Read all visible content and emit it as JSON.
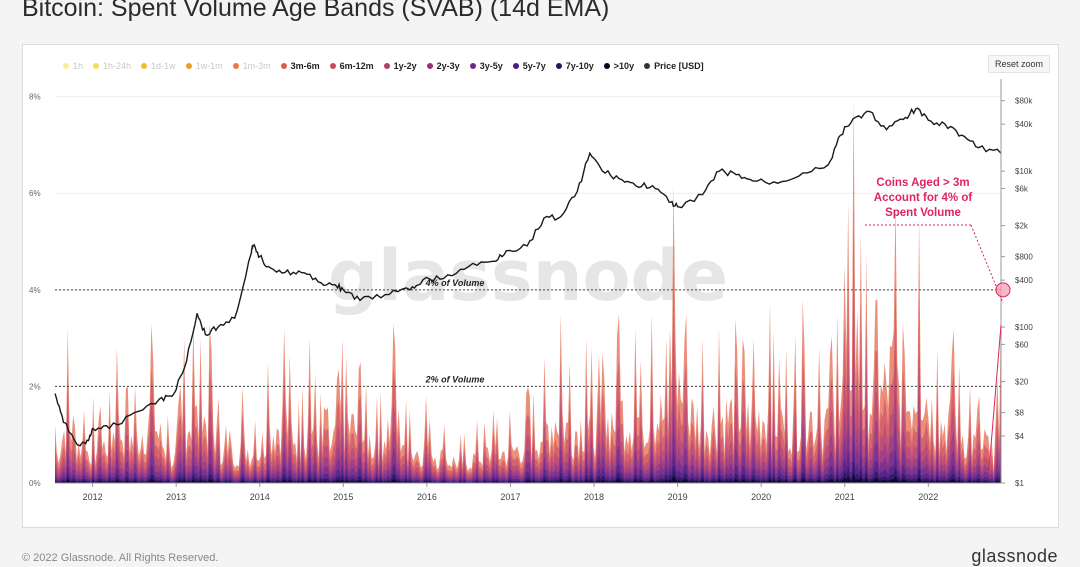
{
  "title": "Bitcoin: Spent Volume Age Bands (SVAB) (14d EMA)",
  "reset_zoom": "Reset zoom",
  "footer_left": "© 2022 Glassnode. All Rights Reserved.",
  "footer_right": "glassnode",
  "watermark": "glassnode",
  "legend": [
    {
      "label": "1h",
      "color": "#f3f09b",
      "active": false
    },
    {
      "label": "1h-24h",
      "color": "#f1df5a",
      "active": false
    },
    {
      "label": "1d-1w",
      "color": "#efbe2c",
      "active": false
    },
    {
      "label": "1w-1m",
      "color": "#ef9b2d",
      "active": false
    },
    {
      "label": "1m-3m",
      "color": "#ea7a3c",
      "active": false
    },
    {
      "label": "3m-6m",
      "color": "#d9614a",
      "active": true
    },
    {
      "label": "6m-12m",
      "color": "#c84a5c",
      "active": true
    },
    {
      "label": "1y-2y",
      "color": "#b23c6d",
      "active": true
    },
    {
      "label": "2y-3y",
      "color": "#95307c",
      "active": true
    },
    {
      "label": "3y-5y",
      "color": "#712687",
      "active": true
    },
    {
      "label": "5y-7y",
      "color": "#4c1c80",
      "active": true
    },
    {
      "label": "7y-10y",
      "color": "#271459",
      "active": true
    },
    {
      ">10y": "",
      "label": ">10y",
      "color": "#0b0520",
      "active": true
    },
    {
      "label": "Price [USD]",
      "color": "#333333",
      "active": true
    }
  ],
  "chart_data": {
    "type": "area",
    "stacked": true,
    "title": "Bitcoin: Spent Volume Age Bands (SVAB) (14d EMA)",
    "x_tick_labels": [
      "2012",
      "2013",
      "2014",
      "2015",
      "2016",
      "2017",
      "2018",
      "2019",
      "2020",
      "2021",
      "2022"
    ],
    "x_range": [
      2011.55,
      2022.87
    ],
    "y_left": {
      "label": "",
      "ticks": [
        "0%",
        "2%",
        "4%",
        "6%",
        "8%"
      ],
      "range": [
        0,
        8.2
      ]
    },
    "y_right": {
      "label": "",
      "scale": "log",
      "ticks": [
        "$1",
        "$4",
        "$8",
        "$20",
        "$60",
        "$100",
        "$400",
        "$800",
        "$2k",
        "$6k",
        "$10k",
        "$40k",
        "$80k"
      ],
      "tick_values": [
        1,
        4,
        8,
        20,
        60,
        100,
        400,
        800,
        2000,
        6000,
        10000,
        40000,
        80000
      ],
      "range": [
        1,
        120000
      ]
    },
    "reference_lines": [
      {
        "value": 4,
        "label": "4% of Volume"
      },
      {
        "value": 2,
        "label": "2% of Volume"
      }
    ],
    "annotation": {
      "text": [
        "Coins Aged > 3m",
        "Account for 4% of",
        "Spent Volume"
      ],
      "color": "#e0245e"
    },
    "series": [
      {
        "name": "3m-6m",
        "color": "#e77a63"
      },
      {
        "name": "6m-12m",
        "color": "#d35f6b"
      },
      {
        "name": "1y-2y",
        "color": "#ba4d7a"
      },
      {
        "name": "2y-3y",
        "color": "#9a3f86"
      },
      {
        "name": "3y-5y",
        "color": "#7a3290"
      },
      {
        "name": "5y-7y",
        "color": "#55268a"
      },
      {
        "name": "7y-10y",
        "color": "#2f1a66"
      },
      {
        "name": ">10y",
        "color": "#0d0628"
      }
    ],
    "svab_total_pct": {
      "x": [
        2011.55,
        2011.7,
        2011.9,
        2012.0,
        2012.1,
        2012.3,
        2012.5,
        2012.7,
        2012.9,
        2013.0,
        2013.1,
        2013.2,
        2013.3,
        2013.4,
        2013.6,
        2013.8,
        2013.95,
        2014.1,
        2014.3,
        2014.5,
        2014.6,
        2014.8,
        2015.0,
        2015.2,
        2015.4,
        2015.6,
        2015.8,
        2016.0,
        2016.2,
        2016.4,
        2016.6,
        2016.8,
        2017.0,
        2017.2,
        2017.4,
        2017.6,
        2017.7,
        2017.9,
        2018.1,
        2018.3,
        2018.5,
        2018.7,
        2018.9,
        2018.95,
        2019.1,
        2019.3,
        2019.5,
        2019.7,
        2019.9,
        2020.1,
        2020.3,
        2020.5,
        2020.7,
        2020.9,
        2021.0,
        2021.1,
        2021.2,
        2021.4,
        2021.6,
        2021.7,
        2021.9,
        2022.1,
        2022.3,
        2022.5,
        2022.6,
        2022.7,
        2022.8,
        2022.87
      ],
      "y": [
        1.2,
        3.2,
        1.5,
        1.8,
        1.6,
        2.8,
        2.0,
        3.3,
        1.4,
        1.2,
        3.0,
        3.3,
        3.0,
        3.3,
        1.2,
        2.0,
        1.3,
        2.5,
        3.2,
        2.0,
        3.0,
        1.5,
        3.0,
        2.5,
        1.8,
        3.3,
        1.5,
        1.8,
        1.2,
        1.0,
        1.3,
        1.5,
        1.5,
        2.0,
        2.6,
        3.5,
        2.5,
        3.0,
        2.7,
        3.5,
        3.2,
        3.5,
        3.2,
        6.2,
        3.5,
        3.0,
        3.2,
        3.4,
        3.0,
        3.7,
        2.8,
        3.8,
        2.8,
        3.5,
        4.5,
        8.0,
        5.2,
        3.8,
        5.8,
        3.3,
        5.5,
        2.8,
        3.2,
        2.0,
        1.8,
        1.0,
        1.2,
        3.8
      ]
    },
    "price_usd": {
      "x": [
        2011.55,
        2011.65,
        2011.85,
        2011.95,
        2012.0,
        2012.2,
        2012.5,
        2012.8,
        2012.95,
        2013.1,
        2013.25,
        2013.35,
        2013.5,
        2013.7,
        2013.9,
        2013.92,
        2014.0,
        2014.1,
        2014.3,
        2014.5,
        2014.7,
        2014.9,
        2015.0,
        2015.2,
        2015.5,
        2015.8,
        2015.95,
        2016.2,
        2016.5,
        2016.8,
        2016.95,
        2017.2,
        2017.4,
        2017.6,
        2017.8,
        2017.95,
        2018.1,
        2018.3,
        2018.5,
        2018.7,
        2018.9,
        2019.0,
        2019.3,
        2019.5,
        2019.7,
        2019.9,
        2020.2,
        2020.5,
        2020.8,
        2020.95,
        2021.1,
        2021.3,
        2021.5,
        2021.7,
        2021.85,
        2022.0,
        2022.2,
        2022.4,
        2022.6,
        2022.87
      ],
      "y": [
        14,
        6,
        3,
        3.5,
        5,
        5,
        8,
        12,
        13,
        30,
        150,
        80,
        100,
        130,
        900,
        1100,
        800,
        600,
        500,
        500,
        380,
        350,
        300,
        220,
        260,
        300,
        400,
        420,
        600,
        700,
        950,
        1100,
        2500,
        2600,
        5500,
        17000,
        10000,
        8000,
        6500,
        6500,
        4000,
        3500,
        5000,
        10000,
        9000,
        7500,
        7000,
        9500,
        12000,
        29000,
        47000,
        58000,
        34000,
        46000,
        63000,
        45000,
        40000,
        29000,
        20000,
        17000
      ]
    }
  }
}
